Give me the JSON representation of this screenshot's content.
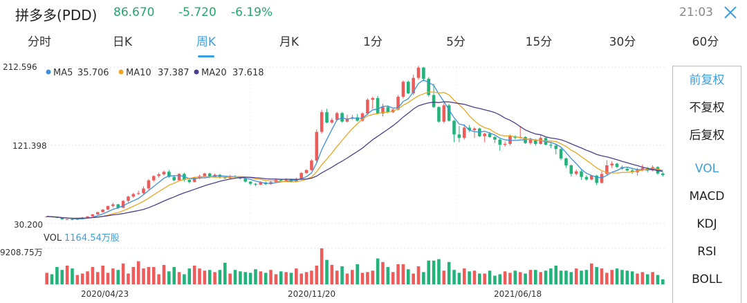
{
  "header": {
    "title": "拼多多(PDD)",
    "price": "86.670",
    "change": "-5.720",
    "change_pct": "-6.19%",
    "time": "21:03",
    "close_icon": "close-icon"
  },
  "colors": {
    "up": "#ee5b5b",
    "down": "#23b27a",
    "ma5": "#3d8fe0",
    "ma10": "#f0a420",
    "ma20": "#4b3e8e",
    "accent": "#3aa0e0"
  },
  "tabs": [
    {
      "label": "分时",
      "active": false
    },
    {
      "label": "日K",
      "active": false
    },
    {
      "label": "周K",
      "active": true
    },
    {
      "label": "月K",
      "active": false
    },
    {
      "label": "1分",
      "active": false
    },
    {
      "label": "5分",
      "active": false
    },
    {
      "label": "15分",
      "active": false
    },
    {
      "label": "30分",
      "active": false
    },
    {
      "label": "60分",
      "active": false
    }
  ],
  "side_menu": {
    "adjust": [
      {
        "label": "前复权",
        "active": true
      },
      {
        "label": "不复权",
        "active": false
      },
      {
        "label": "后复权",
        "active": false
      }
    ],
    "indicators": [
      {
        "label": "VOL",
        "active": true
      },
      {
        "label": "MACD",
        "active": false
      },
      {
        "label": "KDJ",
        "active": false
      },
      {
        "label": "RSI",
        "active": false
      },
      {
        "label": "BOLL",
        "active": false
      }
    ]
  },
  "chart_data": {
    "type": "candlestick",
    "price_axis": {
      "labels": [
        "212.596",
        "121.398",
        "30.200"
      ],
      "min": 30.2,
      "max": 212.596
    },
    "ma_legend": [
      {
        "name": "MA5",
        "value": "35.706"
      },
      {
        "name": "MA10",
        "value": "37.387"
      },
      {
        "name": "MA20",
        "value": "37.618"
      }
    ],
    "volume": {
      "label": "VOL",
      "value": "1164.54万股",
      "max_label": "9208.75万",
      "max": 9208.75
    },
    "x_labels": [
      "2020/04/23",
      "2020/11/20",
      "2021/06/18"
    ],
    "candles": [
      [
        37.5,
        38.4,
        38.6,
        37.2
      ],
      [
        38.4,
        37.6,
        38.9,
        37.1
      ],
      [
        37.6,
        36.8,
        37.9,
        36.3
      ],
      [
        36.8,
        34.9,
        37.3,
        34.7
      ],
      [
        34.9,
        35.1,
        35.6,
        34.7
      ],
      [
        35.1,
        34.5,
        35.5,
        34.1
      ],
      [
        34.5,
        36.7,
        36.9,
        34.2
      ],
      [
        36.7,
        37.0,
        37.8,
        36.3
      ],
      [
        37.0,
        38.5,
        38.7,
        36.7
      ],
      [
        38.5,
        40.8,
        41.5,
        38.4
      ],
      [
        40.8,
        43.4,
        43.7,
        40.1
      ],
      [
        43.4,
        46.4,
        46.8,
        43.1
      ],
      [
        46.4,
        50.5,
        51.0,
        46.0
      ],
      [
        50.5,
        52.5,
        54.5,
        49.0
      ],
      [
        52.5,
        48.5,
        53.0,
        47.0
      ],
      [
        48.5,
        56.5,
        57.5,
        48.0
      ],
      [
        56.5,
        61.5,
        62.5,
        55.0
      ],
      [
        61.5,
        64.5,
        66.0,
        60.0
      ],
      [
        64.5,
        65.5,
        68.5,
        63.5
      ],
      [
        65.5,
        71.0,
        73.5,
        64.5
      ],
      [
        71.0,
        80.5,
        82.0,
        69.5
      ],
      [
        80.5,
        85.5,
        86.5,
        79.0
      ],
      [
        85.5,
        87.5,
        89.5,
        83.5
      ],
      [
        87.5,
        90.5,
        92.0,
        86.0
      ],
      [
        90.5,
        84.5,
        92.5,
        83.5
      ],
      [
        84.5,
        80.5,
        86.5,
        79.5
      ],
      [
        80.5,
        88.0,
        89.0,
        79.5
      ],
      [
        88.0,
        81.0,
        89.5,
        79.0
      ],
      [
        81.0,
        78.5,
        82.5,
        77.0
      ],
      [
        78.5,
        83.5,
        84.5,
        78.0
      ],
      [
        83.5,
        85.5,
        87.0,
        82.0
      ],
      [
        85.5,
        88.5,
        89.5,
        84.0
      ],
      [
        88.5,
        84.5,
        89.5,
        83.0
      ],
      [
        84.5,
        87.0,
        88.5,
        84.0
      ],
      [
        87.0,
        84.0,
        88.0,
        82.5
      ],
      [
        84.0,
        83.0,
        85.0,
        82.0
      ],
      [
        83.0,
        85.5,
        87.0,
        82.5
      ],
      [
        85.5,
        85.0,
        86.5,
        83.5
      ],
      [
        85.0,
        82.5,
        85.5,
        81.5
      ],
      [
        82.5,
        79.0,
        83.0,
        78.0
      ],
      [
        79.0,
        76.5,
        79.5,
        75.0
      ],
      [
        76.5,
        75.5,
        77.5,
        73.5
      ],
      [
        75.5,
        78.0,
        79.5,
        75.0
      ],
      [
        78.0,
        76.0,
        79.0,
        75.0
      ],
      [
        76.0,
        78.5,
        79.5,
        75.5
      ],
      [
        78.5,
        81.0,
        82.0,
        78.0
      ],
      [
        81.0,
        80.5,
        82.0,
        79.5
      ],
      [
        80.5,
        82.0,
        83.0,
        80.0
      ],
      [
        82.0,
        79.0,
        82.5,
        78.5
      ],
      [
        79.0,
        81.5,
        83.5,
        78.5
      ],
      [
        81.5,
        89.0,
        90.0,
        81.0
      ],
      [
        89.0,
        92.5,
        93.5,
        88.0
      ],
      [
        92.5,
        103.5,
        105.0,
        91.5
      ],
      [
        103.5,
        137.0,
        140.0,
        101.0
      ],
      [
        137.0,
        160.0,
        163.0,
        135.0
      ],
      [
        160.0,
        148.0,
        164.0,
        147.0
      ],
      [
        148.0,
        151.0,
        153.5,
        146.5
      ],
      [
        151.0,
        159.0,
        160.5,
        150.0
      ],
      [
        159.0,
        149.0,
        160.0,
        148.0
      ],
      [
        149.0,
        152.5,
        157.0,
        148.0
      ],
      [
        152.5,
        154.0,
        157.0,
        151.0
      ],
      [
        154.0,
        150.0,
        158.0,
        149.0
      ],
      [
        150.0,
        158.5,
        160.0,
        149.0
      ],
      [
        158.5,
        174.5,
        176.0,
        157.0
      ],
      [
        174.5,
        176.5,
        178.0,
        164.0
      ],
      [
        176.5,
        158.5,
        179.0,
        157.5
      ],
      [
        158.5,
        166.0,
        170.0,
        155.0
      ],
      [
        166.0,
        160.0,
        168.0,
        159.0
      ],
      [
        160.0,
        163.0,
        165.0,
        159.0
      ],
      [
        163.0,
        178.0,
        180.0,
        162.0
      ],
      [
        178.0,
        195.5,
        197.0,
        176.0
      ],
      [
        195.5,
        182.0,
        197.0,
        181.0
      ],
      [
        182.0,
        200.0,
        204.0,
        180.0
      ],
      [
        200.0,
        212.0,
        214.0,
        198.0
      ],
      [
        212.0,
        199.0,
        213.0,
        196.0
      ],
      [
        199.0,
        180.0,
        201.0,
        178.0
      ],
      [
        180.0,
        166.0,
        193.0,
        165.0
      ],
      [
        166.0,
        149.0,
        167.0,
        148.0
      ],
      [
        149.0,
        168.0,
        171.0,
        147.0
      ],
      [
        168.0,
        150.0,
        170.0,
        149.0
      ],
      [
        150.0,
        134.0,
        151.0,
        125.0
      ],
      [
        134.0,
        130.0,
        144.0,
        125.0
      ],
      [
        130.0,
        142.0,
        146.0,
        128.0
      ],
      [
        142.0,
        139.0,
        145.0,
        137.0
      ],
      [
        139.0,
        141.0,
        143.0,
        130.0
      ],
      [
        141.0,
        132.0,
        142.0,
        131.0
      ],
      [
        132.0,
        135.0,
        136.0,
        125.0
      ],
      [
        135.0,
        131.0,
        137.0,
        130.0
      ],
      [
        131.0,
        128.0,
        132.0,
        124.0
      ],
      [
        128.0,
        122.0,
        129.0,
        115.0
      ],
      [
        122.0,
        123.0,
        126.0,
        120.0
      ],
      [
        123.0,
        132.0,
        134.0,
        121.0
      ],
      [
        132.0,
        130.0,
        133.0,
        128.0
      ],
      [
        130.0,
        131.0,
        144.0,
        129.0
      ],
      [
        131.0,
        124.0,
        132.0,
        123.0
      ],
      [
        124.0,
        128.0,
        130.0,
        122.0
      ],
      [
        128.0,
        123.0,
        129.0,
        121.0
      ],
      [
        123.0,
        130.0,
        133.0,
        122.0
      ],
      [
        130.0,
        122.0,
        131.0,
        121.0
      ],
      [
        122.0,
        121.0,
        124.0,
        118.0
      ],
      [
        121.0,
        117.0,
        122.0,
        111.0
      ],
      [
        117.0,
        106.0,
        118.0,
        104.0
      ],
      [
        106.0,
        98.0,
        107.0,
        95.0
      ],
      [
        98.0,
        88.0,
        99.0,
        85.0
      ],
      [
        88.0,
        91.0,
        93.0,
        86.0
      ],
      [
        91.0,
        84.5,
        92.5,
        81.0
      ],
      [
        84.5,
        81.5,
        86.5,
        80.0
      ],
      [
        81.5,
        86.0,
        86.5,
        80.5
      ],
      [
        86.0,
        77.5,
        87.0,
        75.0
      ],
      [
        77.5,
        88.0,
        91.0,
        77.0
      ],
      [
        88.0,
        98.0,
        104.0,
        87.0
      ],
      [
        98.0,
        100.0,
        103.0,
        95.0
      ],
      [
        100.0,
        96.0,
        101.0,
        95.0
      ],
      [
        96.0,
        94.0,
        98.0,
        93.0
      ],
      [
        94.0,
        92.0,
        96.0,
        91.0
      ],
      [
        92.0,
        90.0,
        95.0,
        88.0
      ],
      [
        90.0,
        93.0,
        95.0,
        86.0
      ],
      [
        93.0,
        95.0,
        99.0,
        91.0
      ],
      [
        95.0,
        92.0,
        96.0,
        90.0
      ],
      [
        92.0,
        96.0,
        98.0,
        91.0
      ],
      [
        96.0,
        88.5,
        97.0,
        87.0
      ],
      [
        88.5,
        86.7,
        90.0,
        85.0
      ]
    ],
    "volumes": [
      32,
      28,
      48,
      40,
      52,
      44,
      26,
      30,
      36,
      48,
      34,
      52,
      32,
      44,
      40,
      58,
      30,
      48,
      64,
      44,
      48,
      48,
      28,
      54,
      36,
      48,
      34,
      28,
      44,
      52,
      44,
      38,
      40,
      34,
      40,
      60,
      30,
      40,
      36,
      34,
      32,
      42,
      36,
      32,
      40,
      28,
      36,
      34,
      32,
      44,
      30,
      34,
      38,
      52,
      100,
      68,
      54,
      38,
      50,
      30,
      40,
      56,
      32,
      34,
      38,
      72,
      62,
      48,
      34,
      56,
      56,
      42,
      30,
      50,
      34,
      66,
      66,
      70,
      38,
      62,
      40,
      32,
      44,
      36,
      38,
      30,
      30,
      38,
      24,
      28,
      36,
      32,
      38,
      34,
      30,
      40,
      40,
      34,
      38,
      44,
      52,
      38,
      38,
      34,
      44,
      38,
      40,
      58,
      48,
      44,
      32,
      40,
      44,
      40,
      38,
      36,
      30,
      34,
      28,
      34,
      26,
      14
    ]
  }
}
